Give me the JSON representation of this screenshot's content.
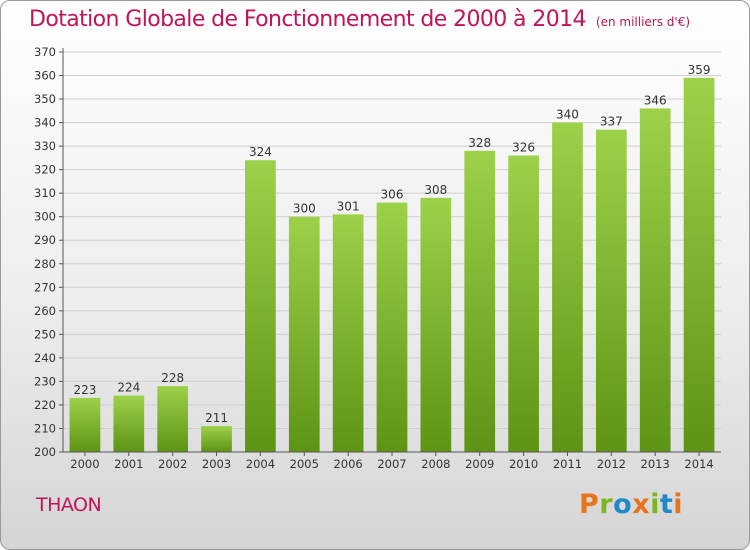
{
  "chart_data": {
    "type": "bar",
    "title": "Dotation Globale de Fonctionnement de 2000 à 2014",
    "unit_note": "(en milliers d'€)",
    "categories": [
      "2000",
      "2001",
      "2002",
      "2003",
      "2004",
      "2005",
      "2006",
      "2007",
      "2008",
      "2009",
      "2010",
      "2011",
      "2012",
      "2013",
      "2014"
    ],
    "values": [
      223,
      224,
      228,
      211,
      324,
      300,
      301,
      306,
      308,
      328,
      326,
      340,
      337,
      346,
      359
    ],
    "ylim": [
      200,
      370
    ],
    "ytick_step": 10,
    "grid": true,
    "bar_color_top": "#9dd14a",
    "bar_color_bottom": "#5e9414",
    "xlabel": "",
    "ylabel": ""
  },
  "footer": {
    "city": "THAON",
    "logo": "Proxiti",
    "logo_colors": [
      "#e8731a",
      "#7cb51f",
      "#1e88c8",
      "#e8731a",
      "#7cb51f",
      "#1e88c8",
      "#e8731a"
    ]
  },
  "colors": {
    "title": "#c0145a",
    "grid": "#cfcfcf"
  }
}
